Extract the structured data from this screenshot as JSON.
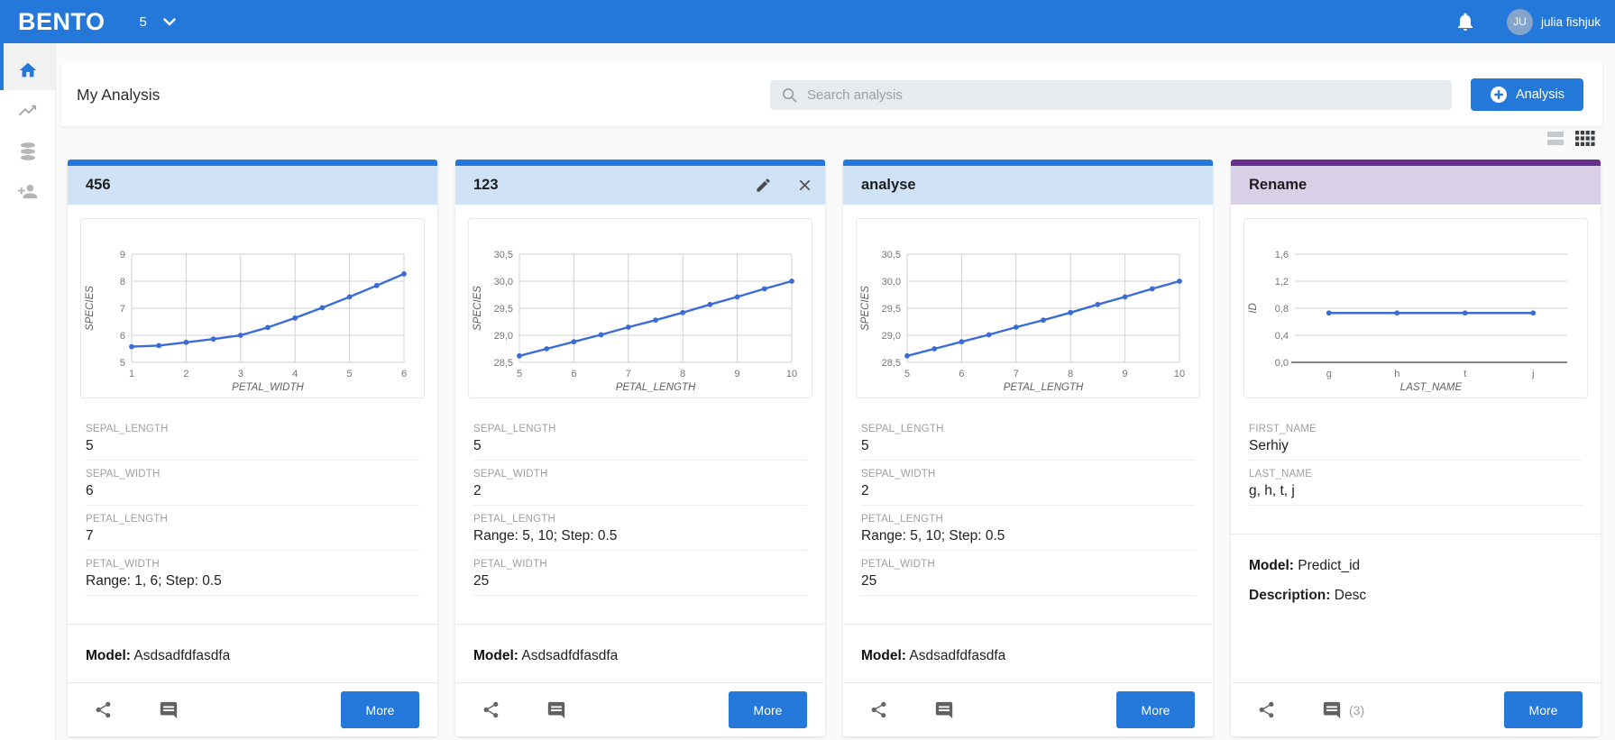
{
  "colors": {
    "primary": "#2478d9",
    "line": "#3a6bd6",
    "blue": {
      "bar": "#2478d9",
      "tint": "#cfe2f6"
    },
    "purple": {
      "bar": "#662e91",
      "tint": "#d9cfe6"
    }
  },
  "navbar": {
    "brand": "BENTO",
    "workspace": "5",
    "user_initials": "JU",
    "user_name": "julia fishjuk"
  },
  "header": {
    "title": "My Analysis",
    "search_placeholder": "Search analysis",
    "new_button": "Analysis"
  },
  "sidebar": {
    "items": [
      {
        "icon": "home"
      },
      {
        "icon": "trending-chart"
      },
      {
        "icon": "database"
      },
      {
        "icon": "person-add"
      }
    ],
    "active": 0
  },
  "cards": [
    {
      "title": "456",
      "accent": "blue",
      "editable": false,
      "chart": {
        "type": "line",
        "xlabel": "PETAL_WIDTH",
        "ylabel": "SPECIES",
        "xlim": [
          1,
          6
        ],
        "ylim": [
          5,
          9
        ],
        "yticks": [
          {
            "v": 5,
            "label": "5"
          },
          {
            "v": 6,
            "label": "6"
          },
          {
            "v": 7,
            "label": "7"
          },
          {
            "v": 8,
            "label": "8"
          },
          {
            "v": 9,
            "label": "9"
          }
        ],
        "xticks": [
          {
            "v": 1,
            "label": "1"
          },
          {
            "v": 2,
            "label": "2"
          },
          {
            "v": 3,
            "label": "3"
          },
          {
            "v": 4,
            "label": "4"
          },
          {
            "v": 5,
            "label": "5"
          },
          {
            "v": 6,
            "label": "6"
          }
        ],
        "x": [
          1,
          1.5,
          2,
          2.5,
          3,
          3.5,
          4,
          4.5,
          5,
          5.5,
          6
        ],
        "y": [
          5.58,
          5.62,
          5.74,
          5.86,
          6.0,
          6.29,
          6.64,
          7.02,
          7.42,
          7.84,
          8.27
        ],
        "vgrid": true,
        "dark_axis": false
      },
      "fields": [
        {
          "label": "SEPAL_LENGTH",
          "value": "5"
        },
        {
          "label": "SEPAL_WIDTH",
          "value": "6"
        },
        {
          "label": "PETAL_LENGTH",
          "value": "7"
        },
        {
          "label": "PETAL_WIDTH",
          "value": "Range: 1, 6; Step: 0.5"
        }
      ],
      "model_label": "Model:",
      "model": "Asdsadfdfasdfa",
      "comments_count": "",
      "more_label": "More"
    },
    {
      "title": "123",
      "accent": "blue",
      "editable": true,
      "chart": {
        "type": "line",
        "xlabel": "PETAL_LENGTH",
        "ylabel": "SPECIES",
        "xlim": [
          5,
          10
        ],
        "ylim": [
          28.5,
          30.5
        ],
        "yticks": [
          {
            "v": 28.5,
            "label": "28,5"
          },
          {
            "v": 29,
            "label": "29,0"
          },
          {
            "v": 29.5,
            "label": "29,5"
          },
          {
            "v": 30,
            "label": "30,0"
          },
          {
            "v": 30.5,
            "label": "30,5"
          }
        ],
        "xticks": [
          {
            "v": 5,
            "label": "5"
          },
          {
            "v": 6,
            "label": "6"
          },
          {
            "v": 7,
            "label": "7"
          },
          {
            "v": 8,
            "label": "8"
          },
          {
            "v": 9,
            "label": "9"
          },
          {
            "v": 10,
            "label": "10"
          }
        ],
        "x": [
          5,
          5.5,
          6,
          6.5,
          7,
          7.5,
          8,
          8.5,
          9,
          9.5,
          10
        ],
        "y": [
          28.62,
          28.75,
          28.88,
          29.01,
          29.15,
          29.28,
          29.42,
          29.57,
          29.71,
          29.86,
          30.0
        ],
        "vgrid": true,
        "dark_axis": false
      },
      "fields": [
        {
          "label": "SEPAL_LENGTH",
          "value": "5"
        },
        {
          "label": "SEPAL_WIDTH",
          "value": "2"
        },
        {
          "label": "PETAL_LENGTH",
          "value": "Range: 5, 10; Step: 0.5"
        },
        {
          "label": "PETAL_WIDTH",
          "value": "25"
        }
      ],
      "model_label": "Model:",
      "model": "Asdsadfdfasdfa",
      "comments_count": "",
      "more_label": "More"
    },
    {
      "title": "analyse",
      "accent": "blue",
      "editable": false,
      "chart": {
        "type": "line",
        "xlabel": "PETAL_LENGTH",
        "ylabel": "SPECIES",
        "xlim": [
          5,
          10
        ],
        "ylim": [
          28.5,
          30.5
        ],
        "yticks": [
          {
            "v": 28.5,
            "label": "28,5"
          },
          {
            "v": 29,
            "label": "29,0"
          },
          {
            "v": 29.5,
            "label": "29,5"
          },
          {
            "v": 30,
            "label": "30,0"
          },
          {
            "v": 30.5,
            "label": "30,5"
          }
        ],
        "xticks": [
          {
            "v": 5,
            "label": "5"
          },
          {
            "v": 6,
            "label": "6"
          },
          {
            "v": 7,
            "label": "7"
          },
          {
            "v": 8,
            "label": "8"
          },
          {
            "v": 9,
            "label": "9"
          },
          {
            "v": 10,
            "label": "10"
          }
        ],
        "x": [
          5,
          5.5,
          6,
          6.5,
          7,
          7.5,
          8,
          8.5,
          9,
          9.5,
          10
        ],
        "y": [
          28.62,
          28.75,
          28.88,
          29.01,
          29.15,
          29.28,
          29.42,
          29.57,
          29.71,
          29.86,
          30.0
        ],
        "vgrid": true,
        "dark_axis": false
      },
      "fields": [
        {
          "label": "SEPAL_LENGTH",
          "value": "5"
        },
        {
          "label": "SEPAL_WIDTH",
          "value": "2"
        },
        {
          "label": "PETAL_LENGTH",
          "value": "Range: 5, 10; Step: 0.5"
        },
        {
          "label": "PETAL_WIDTH",
          "value": "25"
        }
      ],
      "model_label": "Model:",
      "model": "Asdsadfdfasdfa",
      "comments_count": "",
      "more_label": "More"
    },
    {
      "title": "Rename",
      "accent": "purple",
      "editable": false,
      "chart": {
        "type": "line",
        "xlabel": "LAST_NAME",
        "ylabel": "ID",
        "categories": [
          "g",
          "h",
          "t",
          "j"
        ],
        "ylim": [
          0,
          1.6
        ],
        "yticks": [
          {
            "v": 0,
            "label": "0,0"
          },
          {
            "v": 0.4,
            "label": "0,4"
          },
          {
            "v": 0.8,
            "label": "0,8"
          },
          {
            "v": 1.2,
            "label": "1,2"
          },
          {
            "v": 1.6,
            "label": "1,6"
          }
        ],
        "y": [
          0.73,
          0.73,
          0.73,
          0.73
        ],
        "vgrid": false,
        "dark_axis": true
      },
      "fields": [
        {
          "label": "FIRST_NAME",
          "value": "Serhiy"
        },
        {
          "label": "LAST_NAME",
          "value": "g, h, t, j"
        }
      ],
      "model_label": "Model:",
      "model": "Predict_id",
      "description_label": "Description:",
      "description": "Desc",
      "comments_count": "(3)",
      "more_label": "More"
    }
  ]
}
